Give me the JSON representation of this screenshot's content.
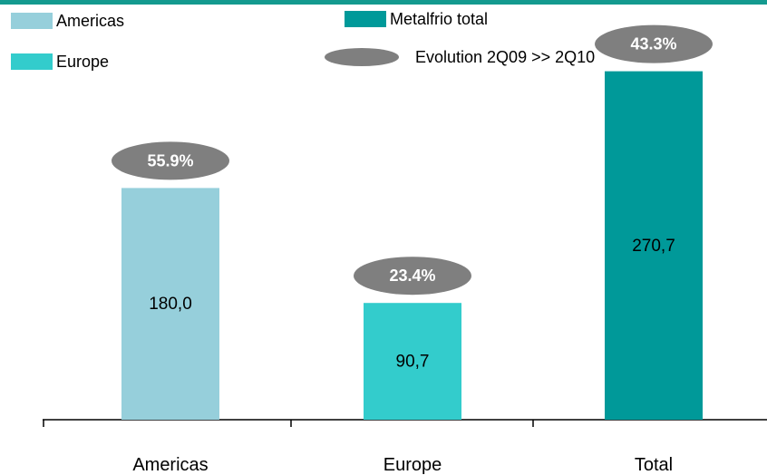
{
  "chart_data": {
    "type": "bar",
    "categories": [
      "Americas",
      "Europe",
      "Total"
    ],
    "values": [
      180.0,
      90.7,
      270.7
    ],
    "value_labels": [
      "180,0",
      "90,7",
      "270,7"
    ],
    "evolution_labels": [
      "55.9%",
      "23.4%",
      "43.3%"
    ],
    "colors": [
      "#96cfdb",
      "#33cccc",
      "#009999"
    ],
    "evolution_color": "#7f7f7f",
    "title": "",
    "xlabel": "",
    "ylabel": "",
    "ylim": [
      0,
      300
    ],
    "grid": false,
    "legend": {
      "placement": "top",
      "items": [
        {
          "label": "Americas",
          "color": "#96cfdb",
          "shape": "rect"
        },
        {
          "label": "Europe",
          "color": "#33cccc",
          "shape": "rect"
        },
        {
          "label": "Metalfrio total",
          "color": "#009999",
          "shape": "rect"
        },
        {
          "label": "Evolution 2Q09 >> 2Q10",
          "color": "#7f7f7f",
          "shape": "ellipse"
        }
      ]
    }
  }
}
